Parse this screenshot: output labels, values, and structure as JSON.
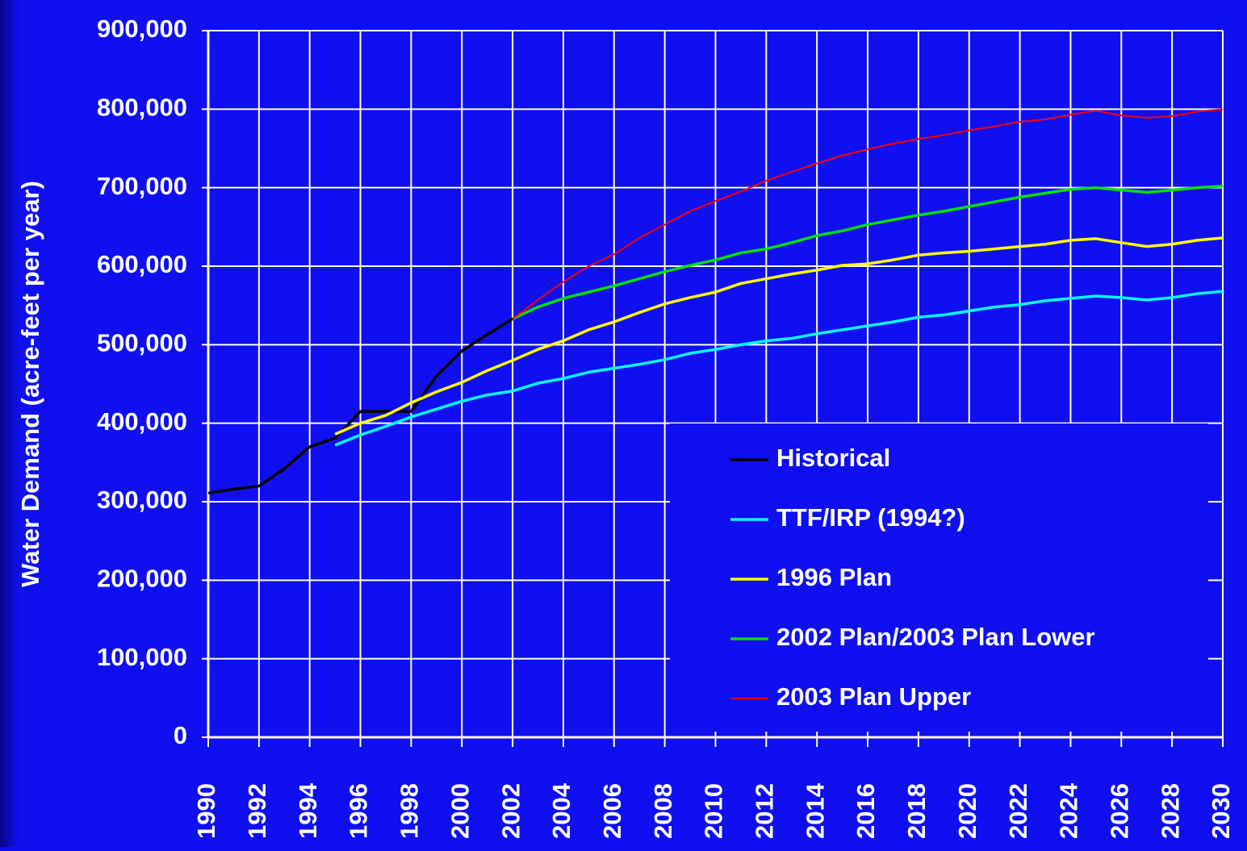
{
  "chart_data": {
    "type": "line",
    "ylabel": "Water Demand (acre-feet per year)",
    "x": [
      1990,
      1991,
      1992,
      1993,
      1994,
      1995,
      1996,
      1997,
      1998,
      1999,
      2000,
      2001,
      2002,
      2003,
      2004,
      2005,
      2006,
      2007,
      2008,
      2009,
      2010,
      2011,
      2012,
      2013,
      2014,
      2015,
      2016,
      2017,
      2018,
      2019,
      2020,
      2021,
      2022,
      2023,
      2024,
      2025,
      2026,
      2027,
      2028,
      2029,
      2030
    ],
    "series": [
      {
        "name": "Historical",
        "color": "#000000",
        "values": [
          311000,
          316000,
          320000,
          342000,
          370000,
          381000,
          415000,
          415000,
          415000,
          460000,
          492000,
          513000,
          533000,
          null,
          null,
          null,
          null,
          null,
          null,
          null,
          null,
          null,
          null,
          null,
          null,
          null,
          null,
          null,
          null,
          null,
          null,
          null,
          null,
          null,
          null,
          null,
          null,
          null,
          null,
          null,
          null
        ]
      },
      {
        "name": "TTF/IRP (1994?)",
        "color": "#00ffff",
        "values": [
          null,
          null,
          null,
          null,
          null,
          372000,
          385000,
          396000,
          408000,
          418000,
          428000,
          436000,
          441000,
          451000,
          457000,
          465000,
          470000,
          475000,
          481000,
          489000,
          494000,
          500000,
          505000,
          508000,
          514000,
          519000,
          524000,
          529000,
          535000,
          538000,
          543000,
          548000,
          551000,
          556000,
          559000,
          562000,
          560000,
          557000,
          560000,
          565000,
          568000
        ]
      },
      {
        "name": "1996 Plan",
        "color": "#ffff00",
        "values": [
          null,
          null,
          null,
          null,
          null,
          386000,
          400000,
          410000,
          426000,
          440000,
          452000,
          467000,
          480000,
          494000,
          505000,
          519000,
          529000,
          541000,
          552000,
          560000,
          567000,
          578000,
          584000,
          590000,
          595000,
          601000,
          603000,
          608000,
          614000,
          617000,
          619000,
          622000,
          625000,
          628000,
          633000,
          635000,
          630000,
          625000,
          628000,
          633000,
          636000
        ]
      },
      {
        "name": "2002 Plan/2003 Plan Lower",
        "color": "#00e000",
        "values": [
          null,
          null,
          null,
          null,
          null,
          null,
          null,
          null,
          null,
          null,
          null,
          null,
          533000,
          548000,
          559000,
          567000,
          575000,
          584000,
          593000,
          601000,
          608000,
          617000,
          622000,
          630000,
          639000,
          645000,
          653000,
          659000,
          665000,
          670000,
          676000,
          682000,
          688000,
          693000,
          698000,
          700000,
          697000,
          694000,
          697000,
          700000,
          702000
        ]
      },
      {
        "name": "2003 Plan Upper",
        "color": "#ff0000",
        "values": [
          null,
          null,
          null,
          null,
          null,
          null,
          null,
          null,
          null,
          null,
          null,
          null,
          533000,
          557000,
          580000,
          600000,
          615000,
          636000,
          653000,
          670000,
          683000,
          695000,
          709000,
          720000,
          731000,
          741000,
          749000,
          756000,
          762000,
          767000,
          773000,
          778000,
          784000,
          787000,
          793000,
          798000,
          792000,
          789000,
          791000,
          797000,
          800000
        ]
      }
    ],
    "xlim": [
      1990,
      2030
    ],
    "xticks": [
      1990,
      1992,
      1994,
      1996,
      1998,
      2000,
      2002,
      2004,
      2006,
      2008,
      2010,
      2012,
      2014,
      2016,
      2018,
      2020,
      2022,
      2024,
      2026,
      2028,
      2030
    ],
    "ylim": [
      0,
      900000
    ],
    "yticks": [
      0,
      {
        "value": 100000,
        "label": "100,000"
      },
      {
        "value": 200000,
        "label": "200,000"
      },
      {
        "value": 300000,
        "label": "300,000"
      },
      {
        "value": 400000,
        "label": "400,000"
      },
      {
        "value": 500000,
        "label": "500,000"
      },
      {
        "value": 600000,
        "label": "600,000"
      },
      {
        "value": 700000,
        "label": "700,000"
      },
      {
        "value": 800000,
        "label": "800,000"
      },
      {
        "value": 900000,
        "label": "900,000"
      }
    ],
    "grid": true,
    "legend": "lower right"
  }
}
